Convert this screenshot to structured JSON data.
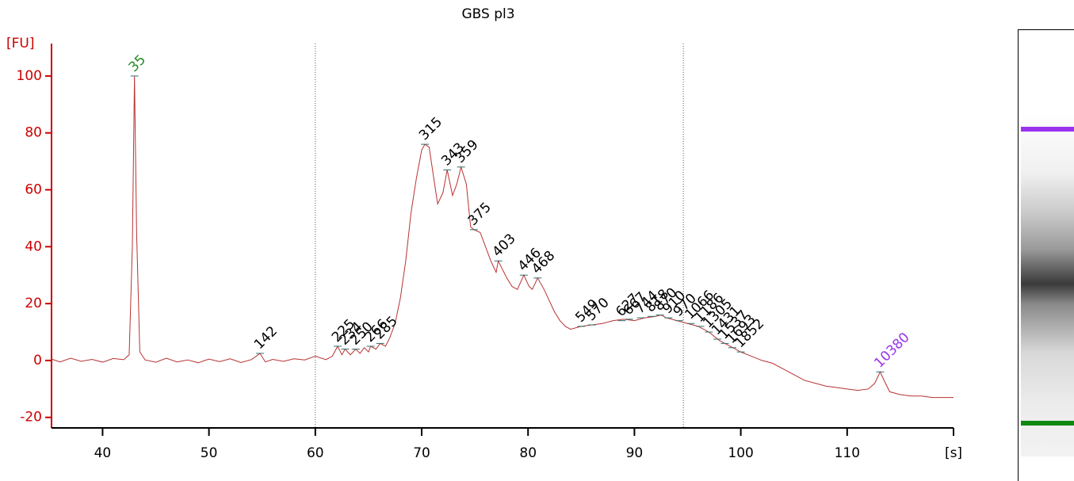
{
  "chart_data": {
    "type": "line",
    "title": "GBS pl3",
    "y_label": "[FU]",
    "x_label": "[s]",
    "xlim": [
      35.2,
      120
    ],
    "ylim": [
      -23.7,
      111.4
    ],
    "xticks": [
      40,
      50,
      60,
      70,
      80,
      90,
      100,
      110
    ],
    "yticks": [
      -20,
      0,
      20,
      40,
      60,
      80,
      100
    ],
    "axis_color": "#cc0000",
    "region_lines": [
      60,
      94.6
    ],
    "x": [
      35.2,
      36,
      37,
      38,
      39,
      40,
      41,
      42,
      42.5,
      42.8,
      43,
      43.2,
      43.5,
      44,
      45,
      46,
      47,
      48,
      49,
      50,
      51,
      52,
      53,
      54,
      54.8,
      55.3,
      56,
      57,
      58,
      59,
      60,
      61,
      61.6,
      62.1,
      62.5,
      62.8,
      63.3,
      63.8,
      64.2,
      64.6,
      65,
      65.2,
      65.7,
      66.1,
      66.6,
      67,
      67.5,
      68,
      68.5,
      69,
      69.5,
      70,
      70.3,
      70.7,
      71.1,
      71.5,
      72,
      72.4,
      72.9,
      73.3,
      73.7,
      74.2,
      74.6,
      74.9,
      75.5,
      76,
      76.5,
      77,
      77.2,
      77.6,
      78,
      78.5,
      79,
      79.6,
      80.1,
      80.4,
      80.9,
      81.5,
      82,
      82.5,
      83,
      83.5,
      84,
      85,
      86,
      87,
      88,
      89,
      90,
      91,
      92,
      92.5,
      93,
      94,
      95,
      96,
      97,
      98,
      99,
      100,
      101,
      102,
      103,
      104,
      105,
      106,
      107,
      108,
      109,
      110,
      111,
      112,
      112.6,
      113.1,
      113.6,
      114,
      115,
      116,
      117,
      118,
      119,
      120
    ],
    "series": [
      {
        "name": "GBS pl3",
        "color": "#b83232",
        "values": [
          0.5,
          -0.5,
          0.8,
          -0.3,
          0.4,
          -0.6,
          0.7,
          0.3,
          2,
          40,
          100,
          45,
          3,
          0.2,
          -0.6,
          0.8,
          -0.5,
          0.2,
          -0.8,
          0.5,
          -0.4,
          0.6,
          -0.7,
          0.3,
          2.5,
          -0.5,
          0.4,
          -0.3,
          0.6,
          0.2,
          1.5,
          0.3,
          1.5,
          5,
          2,
          4,
          2,
          4,
          2.5,
          4.5,
          3,
          5,
          4,
          6,
          5,
          8,
          13,
          22,
          35,
          52,
          64,
          74,
          76,
          75,
          65,
          55,
          59,
          67,
          58,
          62,
          68,
          62,
          47,
          46,
          45,
          40,
          35,
          31,
          35,
          32,
          29,
          26,
          25,
          30,
          26,
          25,
          29,
          25,
          21,
          17,
          14,
          12,
          11,
          12,
          12.5,
          13,
          14,
          14.5,
          14,
          15,
          15.5,
          16,
          15,
          14,
          13,
          12,
          10,
          7,
          5,
          3,
          1.5,
          0,
          -1,
          -3,
          -5,
          -7,
          -8,
          -9,
          -9.5,
          -10,
          -10.5,
          -10,
          -8,
          -4,
          -8,
          -11,
          -12,
          -12.5,
          -12.5,
          -13,
          -13,
          -13
        ]
      }
    ],
    "peaks": [
      {
        "label": "35",
        "x": 43,
        "y": 100,
        "color": "#228b22"
      },
      {
        "label": "142",
        "x": 54.8,
        "y": 2.5,
        "color": "#000000"
      },
      {
        "label": "225",
        "x": 62.1,
        "y": 5,
        "color": "#000000"
      },
      {
        "label": "234",
        "x": 62.8,
        "y": 4,
        "color": "#000000"
      },
      {
        "label": "250",
        "x": 63.8,
        "y": 4,
        "color": "#000000"
      },
      {
        "label": "266",
        "x": 65.2,
        "y": 5,
        "color": "#000000"
      },
      {
        "label": "285",
        "x": 66.1,
        "y": 6,
        "color": "#000000"
      },
      {
        "label": "315",
        "x": 70.3,
        "y": 76,
        "color": "#000000"
      },
      {
        "label": "343",
        "x": 72.4,
        "y": 67,
        "color": "#000000"
      },
      {
        "label": "359",
        "x": 73.7,
        "y": 68,
        "color": "#000000"
      },
      {
        "label": "375",
        "x": 74.9,
        "y": 46,
        "color": "#000000"
      },
      {
        "label": "403",
        "x": 77.2,
        "y": 35,
        "color": "#000000"
      },
      {
        "label": "446",
        "x": 79.6,
        "y": 30,
        "color": "#000000"
      },
      {
        "label": "468",
        "x": 80.9,
        "y": 29,
        "color": "#000000"
      },
      {
        "label": "549",
        "x": 85,
        "y": 12,
        "color": "#000000"
      },
      {
        "label": "570",
        "x": 86,
        "y": 12.5,
        "color": "#000000"
      },
      {
        "label": "627",
        "x": 88.8,
        "y": 14,
        "color": "#000000"
      },
      {
        "label": "667",
        "x": 89.5,
        "y": 14.5,
        "color": "#000000"
      },
      {
        "label": "744",
        "x": 90.6,
        "y": 15,
        "color": "#000000"
      },
      {
        "label": "818",
        "x": 91.6,
        "y": 15.5,
        "color": "#000000"
      },
      {
        "label": "870",
        "x": 92.4,
        "y": 16,
        "color": "#000000"
      },
      {
        "label": "910",
        "x": 93.2,
        "y": 15,
        "color": "#000000"
      },
      {
        "label": "970",
        "x": 94.2,
        "y": 14,
        "color": "#000000"
      },
      {
        "label": "1066",
        "x": 95.3,
        "y": 13,
        "color": "#000000"
      },
      {
        "label": "1186",
        "x": 96.2,
        "y": 12,
        "color": "#000000"
      },
      {
        "label": "1305",
        "x": 97,
        "y": 10,
        "color": "#000000"
      },
      {
        "label": "1431",
        "x": 97.8,
        "y": 7.5,
        "color": "#000000"
      },
      {
        "label": "1537",
        "x": 98.5,
        "y": 6,
        "color": "#000000"
      },
      {
        "label": "1693",
        "x": 99.2,
        "y": 4.5,
        "color": "#000000"
      },
      {
        "label": "1852",
        "x": 100,
        "y": 3,
        "color": "#000000"
      },
      {
        "label": "10380",
        "x": 113.1,
        "y": -4,
        "color": "#9933ee"
      }
    ]
  }
}
